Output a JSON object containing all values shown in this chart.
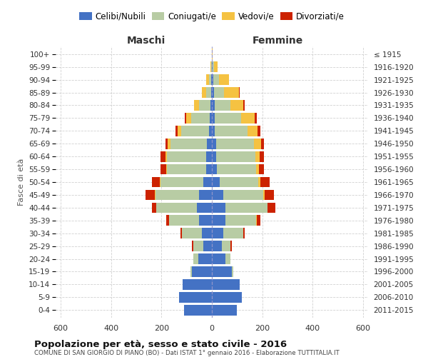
{
  "age_groups": [
    "0-4",
    "5-9",
    "10-14",
    "15-19",
    "20-24",
    "25-29",
    "30-34",
    "35-39",
    "40-44",
    "45-49",
    "50-54",
    "55-59",
    "60-64",
    "65-69",
    "70-74",
    "75-79",
    "80-84",
    "85-89",
    "90-94",
    "95-99",
    "100+"
  ],
  "birth_years": [
    "2011-2015",
    "2006-2010",
    "2001-2005",
    "1996-2000",
    "1991-1995",
    "1986-1990",
    "1981-1985",
    "1976-1980",
    "1971-1975",
    "1966-1970",
    "1961-1965",
    "1956-1960",
    "1951-1955",
    "1946-1950",
    "1941-1945",
    "1936-1940",
    "1931-1935",
    "1926-1930",
    "1921-1925",
    "1916-1920",
    "≤ 1915"
  ],
  "male_celibe": [
    110,
    130,
    115,
    80,
    55,
    35,
    40,
    50,
    60,
    50,
    35,
    22,
    22,
    20,
    12,
    8,
    5,
    3,
    2,
    1,
    1
  ],
  "male_coniugato": [
    0,
    0,
    0,
    5,
    20,
    40,
    80,
    120,
    160,
    175,
    170,
    155,
    155,
    145,
    110,
    75,
    45,
    20,
    10,
    2,
    0
  ],
  "male_vedovo": [
    0,
    0,
    0,
    0,
    0,
    0,
    0,
    1,
    1,
    2,
    3,
    5,
    8,
    10,
    15,
    20,
    20,
    18,
    12,
    3,
    0
  ],
  "male_divorziato": [
    0,
    0,
    0,
    0,
    0,
    3,
    5,
    10,
    18,
    35,
    30,
    22,
    18,
    10,
    8,
    5,
    2,
    0,
    0,
    0,
    0
  ],
  "female_celibe": [
    100,
    120,
    110,
    80,
    55,
    40,
    45,
    55,
    55,
    45,
    30,
    20,
    18,
    16,
    12,
    10,
    10,
    8,
    5,
    3,
    1
  ],
  "female_coniugato": [
    0,
    0,
    0,
    5,
    20,
    35,
    80,
    120,
    165,
    160,
    155,
    155,
    155,
    150,
    130,
    105,
    65,
    40,
    22,
    5,
    0
  ],
  "female_vedovo": [
    0,
    0,
    0,
    0,
    0,
    0,
    0,
    2,
    2,
    5,
    8,
    12,
    18,
    30,
    40,
    55,
    50,
    60,
    40,
    15,
    2
  ],
  "female_divorziato": [
    0,
    0,
    0,
    0,
    0,
    3,
    5,
    15,
    30,
    35,
    35,
    20,
    15,
    12,
    10,
    8,
    5,
    2,
    0,
    0,
    0
  ],
  "colors": {
    "celibe": "#4472c4",
    "coniugato": "#b8cca4",
    "vedovo": "#f5c242",
    "divorziato": "#cc2200"
  },
  "xlim": 620,
  "xticks": [
    -600,
    -400,
    -200,
    0,
    200,
    400,
    600
  ],
  "title": "Popolazione per età, sesso e stato civile - 2016",
  "subtitle": "COMUNE DI SAN GIORGIO DI PIANO (BO) - Dati ISTAT 1° gennaio 2016 - Elaborazione TUTTITALIA.IT",
  "xlabel_left": "Maschi",
  "xlabel_right": "Femmine",
  "ylabel_left": "Fasce di età",
  "bg_color": "#ffffff",
  "grid_color": "#cccccc"
}
